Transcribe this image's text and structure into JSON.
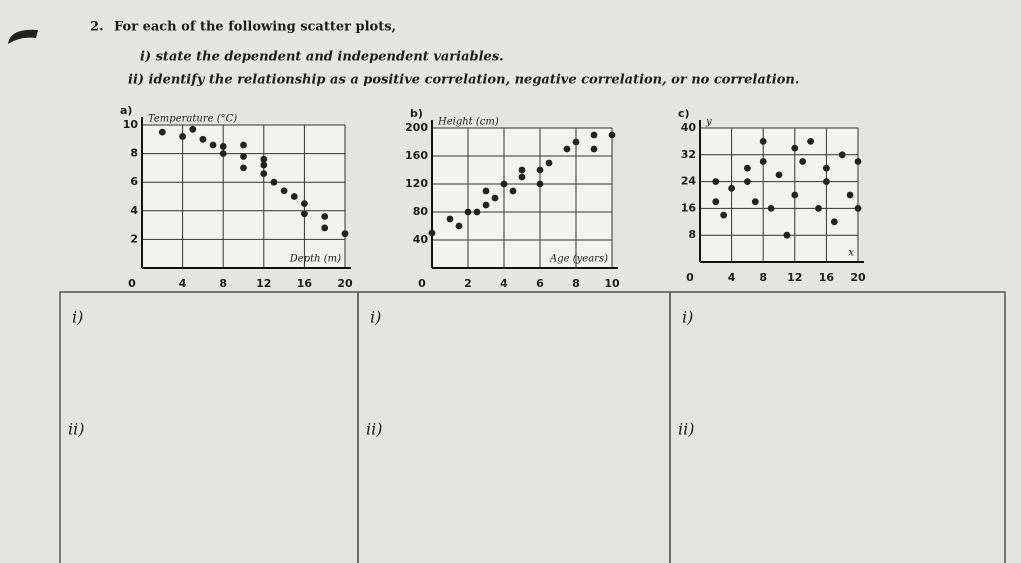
{
  "question": {
    "number": "2.",
    "text": "For each of the following scatter plots,",
    "items": [
      "i)  state the dependent and independent variables.",
      "ii)  identify the relationship as a positive correlation, negative correlation, or no correlation."
    ]
  },
  "chart_data": [
    {
      "type": "scatter",
      "label": "a)",
      "ylabel": "Temperature (°C)",
      "xlabel": "Depth (m)",
      "color": "#222",
      "grid": true,
      "xlim": [
        0,
        20
      ],
      "ylim": [
        0,
        10
      ],
      "xticks": [
        0,
        4,
        8,
        12,
        16,
        20
      ],
      "yticks": [
        2,
        4,
        6,
        8,
        10
      ],
      "x": [
        2,
        4,
        5,
        6,
        7,
        8,
        8,
        10,
        10,
        10,
        12,
        12,
        12,
        13,
        14,
        15,
        16,
        16,
        18,
        18,
        20
      ],
      "values": [
        9.5,
        9.2,
        9.7,
        9,
        8.6,
        8.5,
        8,
        8.6,
        7.8,
        7,
        7.6,
        7.2,
        6.6,
        6,
        5.4,
        5,
        4.5,
        3.8,
        3.6,
        2.8,
        2.4
      ]
    },
    {
      "type": "scatter",
      "label": "b)",
      "ylabel": "Height (cm)",
      "xlabel": "Age (years)",
      "color": "#222",
      "grid": true,
      "xlim": [
        0,
        10
      ],
      "ylim": [
        0,
        200
      ],
      "xticks": [
        0,
        2,
        4,
        6,
        8,
        10
      ],
      "yticks": [
        40,
        80,
        120,
        160,
        200
      ],
      "x": [
        0,
        1,
        1.5,
        2,
        2.5,
        3,
        3,
        3.5,
        4,
        4.5,
        5,
        5,
        6,
        6,
        6.5,
        7.5,
        8,
        9,
        9,
        10
      ],
      "values": [
        50,
        70,
        60,
        80,
        80,
        90,
        110,
        100,
        120,
        110,
        140,
        130,
        140,
        120,
        150,
        170,
        180,
        170,
        190,
        190
      ]
    },
    {
      "type": "scatter",
      "label": "c)",
      "ylabel": "y",
      "xlabel": "x",
      "color": "#222",
      "grid": true,
      "xlim": [
        0,
        20
      ],
      "ylim": [
        0,
        40
      ],
      "xticks": [
        0,
        4,
        8,
        12,
        16,
        20
      ],
      "yticks": [
        8,
        16,
        24,
        32,
        40
      ],
      "x": [
        2,
        2,
        3,
        4,
        6,
        6,
        7,
        8,
        8,
        9,
        10,
        11,
        12,
        12,
        13,
        14,
        15,
        16,
        16,
        17,
        18,
        19,
        20,
        20
      ],
      "values": [
        24,
        18,
        14,
        22,
        28,
        24,
        18,
        36,
        30,
        16,
        26,
        8,
        34,
        20,
        30,
        36,
        16,
        28,
        24,
        12,
        32,
        20,
        30,
        16
      ]
    }
  ],
  "answer_boxes": [
    {
      "labels": [
        "i)",
        "ii)"
      ]
    },
    {
      "labels": [
        "i)",
        "ii)"
      ]
    },
    {
      "labels": [
        "i)",
        "ii)"
      ]
    }
  ]
}
